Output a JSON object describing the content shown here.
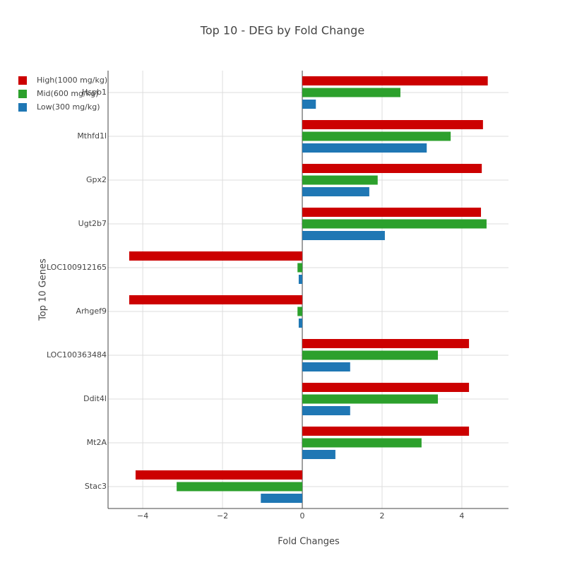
{
  "chart_data": {
    "type": "hbar",
    "title": "Top 10 - DEG by Fold Change",
    "x_label": "Fold Changes",
    "y_label": "Top 10 Genes",
    "categories": [
      "Hspb1",
      "Mthfd1l",
      "Gpx2",
      "Ugt2b7",
      "LOC100912165",
      "Arhgef9",
      "LOC100363484",
      "Ddit4l",
      "Mt2A",
      "Stac3"
    ],
    "series": [
      {
        "name": "High(1000 mg/kg)",
        "color": "#cc0000",
        "values": [
          4.65,
          4.53,
          4.5,
          4.48,
          -4.34,
          -4.34,
          4.18,
          4.18,
          4.18,
          -4.18
        ]
      },
      {
        "name": "Mid(600 mg/kg)",
        "color": "#2ca02c",
        "values": [
          2.46,
          3.72,
          1.89,
          4.62,
          -0.12,
          -0.12,
          3.4,
          3.4,
          2.99,
          -3.15
        ]
      },
      {
        "name": "Low(300 mg/kg)",
        "color": "#1f77b4",
        "values": [
          0.34,
          3.12,
          1.68,
          2.07,
          -0.09,
          -0.09,
          1.2,
          1.2,
          0.83,
          -1.04
        ]
      }
    ],
    "xlim": [
      -4.87,
      5.17
    ],
    "xticks": [
      {
        "value": -4,
        "label": "−4"
      },
      {
        "value": -2,
        "label": "−2"
      },
      0,
      2,
      4
    ],
    "grid": true,
    "legend": "top-left"
  }
}
